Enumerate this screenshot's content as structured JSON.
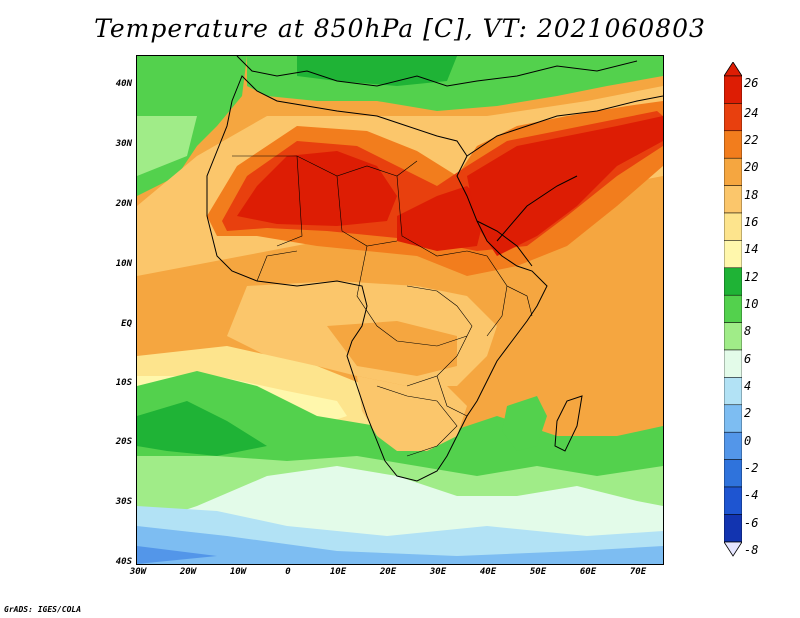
{
  "title": "Temperature at 850hPa [C], VT: 2021060803",
  "credit": "GrADS: IGES/COLA",
  "lat_labels": [
    "40N",
    "30N",
    "20N",
    "10N",
    "EQ",
    "10S",
    "20S",
    "30S",
    "40S"
  ],
  "lon_labels": [
    "30W",
    "20W",
    "10W",
    "0",
    "10E",
    "20E",
    "30E",
    "40E",
    "50E",
    "60E",
    "70E"
  ],
  "colorbar": {
    "labels": [
      "26",
      "24",
      "22",
      "20",
      "18",
      "16",
      "14",
      "12",
      "10",
      "8",
      "6",
      "4",
      "2",
      "0",
      "-2",
      "-4",
      "-6",
      "-8"
    ],
    "colors": [
      "#dd1d04",
      "#e8400e",
      "#f27d1d",
      "#f5a640",
      "#fbc66b",
      "#fde48d",
      "#fff7ac",
      "#1fb336",
      "#53d14d",
      "#a0ec88",
      "#e3fbe9",
      "#b2e2f5",
      "#7dbdf2",
      "#5396e9",
      "#2f73dc",
      "#1e55d1",
      "#1234b0",
      "#0b1b7a"
    ]
  }
}
